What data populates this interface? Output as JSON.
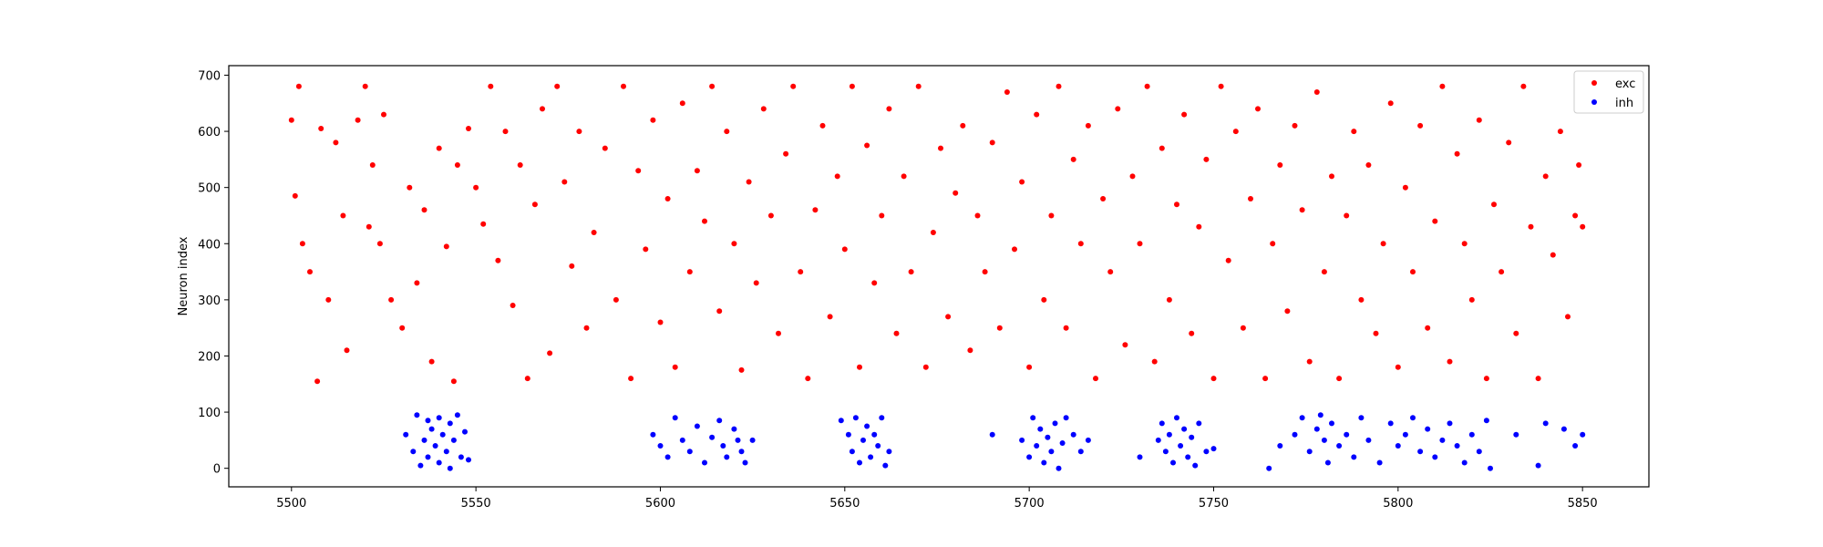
{
  "chart_data": {
    "type": "scatter",
    "title": "",
    "xlabel": "",
    "ylabel": "Neuron index",
    "xlim": [
      5483,
      5868
    ],
    "ylim": [
      -33,
      717
    ],
    "xticks": [
      "5500",
      "5550",
      "5600",
      "5650",
      "5700",
      "5750",
      "5800",
      "5850"
    ],
    "yticks": [
      "0",
      "100",
      "200",
      "300",
      "400",
      "500",
      "600",
      "700"
    ],
    "grid": false,
    "legend_position": "top-right",
    "series": [
      {
        "name": "exc",
        "color": "#ff0000",
        "points": [
          [
            5500,
            620
          ],
          [
            5501,
            485
          ],
          [
            5502,
            680
          ],
          [
            5503,
            400
          ],
          [
            5505,
            350
          ],
          [
            5507,
            155
          ],
          [
            5508,
            605
          ],
          [
            5510,
            300
          ],
          [
            5512,
            580
          ],
          [
            5514,
            450
          ],
          [
            5515,
            210
          ],
          [
            5518,
            620
          ],
          [
            5520,
            680
          ],
          [
            5521,
            430
          ],
          [
            5522,
            540
          ],
          [
            5524,
            400
          ],
          [
            5525,
            630
          ],
          [
            5527,
            300
          ],
          [
            5530,
            250
          ],
          [
            5532,
            500
          ],
          [
            5534,
            330
          ],
          [
            5536,
            460
          ],
          [
            5538,
            190
          ],
          [
            5540,
            570
          ],
          [
            5542,
            395
          ],
          [
            5544,
            155
          ],
          [
            5545,
            540
          ],
          [
            5548,
            605
          ],
          [
            5550,
            500
          ],
          [
            5552,
            435
          ],
          [
            5554,
            680
          ],
          [
            5556,
            370
          ],
          [
            5558,
            600
          ],
          [
            5560,
            290
          ],
          [
            5562,
            540
          ],
          [
            5564,
            160
          ],
          [
            5566,
            470
          ],
          [
            5568,
            640
          ],
          [
            5570,
            205
          ],
          [
            5572,
            680
          ],
          [
            5574,
            510
          ],
          [
            5576,
            360
          ],
          [
            5578,
            600
          ],
          [
            5580,
            250
          ],
          [
            5582,
            420
          ],
          [
            5585,
            570
          ],
          [
            5588,
            300
          ],
          [
            5590,
            680
          ],
          [
            5592,
            160
          ],
          [
            5594,
            530
          ],
          [
            5596,
            390
          ],
          [
            5598,
            620
          ],
          [
            5600,
            260
          ],
          [
            5602,
            480
          ],
          [
            5604,
            180
          ],
          [
            5606,
            650
          ],
          [
            5608,
            350
          ],
          [
            5610,
            530
          ],
          [
            5612,
            440
          ],
          [
            5614,
            680
          ],
          [
            5616,
            280
          ],
          [
            5618,
            600
          ],
          [
            5620,
            400
          ],
          [
            5622,
            175
          ],
          [
            5624,
            510
          ],
          [
            5626,
            330
          ],
          [
            5628,
            640
          ],
          [
            5630,
            450
          ],
          [
            5632,
            240
          ],
          [
            5634,
            560
          ],
          [
            5636,
            680
          ],
          [
            5638,
            350
          ],
          [
            5640,
            160
          ],
          [
            5642,
            460
          ],
          [
            5644,
            610
          ],
          [
            5646,
            270
          ],
          [
            5648,
            520
          ],
          [
            5650,
            390
          ],
          [
            5652,
            680
          ],
          [
            5654,
            180
          ],
          [
            5656,
            575
          ],
          [
            5658,
            330
          ],
          [
            5660,
            450
          ],
          [
            5662,
            640
          ],
          [
            5664,
            240
          ],
          [
            5666,
            520
          ],
          [
            5668,
            350
          ],
          [
            5670,
            680
          ],
          [
            5672,
            180
          ],
          [
            5674,
            420
          ],
          [
            5676,
            570
          ],
          [
            5678,
            270
          ],
          [
            5680,
            490
          ],
          [
            5682,
            610
          ],
          [
            5684,
            210
          ],
          [
            5686,
            450
          ],
          [
            5688,
            350
          ],
          [
            5690,
            580
          ],
          [
            5692,
            250
          ],
          [
            5694,
            670
          ],
          [
            5696,
            390
          ],
          [
            5698,
            510
          ],
          [
            5700,
            180
          ],
          [
            5702,
            630
          ],
          [
            5704,
            300
          ],
          [
            5706,
            450
          ],
          [
            5708,
            680
          ],
          [
            5710,
            250
          ],
          [
            5712,
            550
          ],
          [
            5714,
            400
          ],
          [
            5716,
            610
          ],
          [
            5718,
            160
          ],
          [
            5720,
            480
          ],
          [
            5722,
            350
          ],
          [
            5724,
            640
          ],
          [
            5726,
            220
          ],
          [
            5728,
            520
          ],
          [
            5730,
            400
          ],
          [
            5732,
            680
          ],
          [
            5734,
            190
          ],
          [
            5736,
            570
          ],
          [
            5738,
            300
          ],
          [
            5740,
            470
          ],
          [
            5742,
            630
          ],
          [
            5744,
            240
          ],
          [
            5746,
            430
          ],
          [
            5748,
            550
          ],
          [
            5750,
            160
          ],
          [
            5752,
            680
          ],
          [
            5754,
            370
          ],
          [
            5756,
            600
          ],
          [
            5758,
            250
          ],
          [
            5760,
            480
          ],
          [
            5762,
            640
          ],
          [
            5764,
            160
          ],
          [
            5766,
            400
          ],
          [
            5768,
            540
          ],
          [
            5770,
            280
          ],
          [
            5772,
            610
          ],
          [
            5774,
            460
          ],
          [
            5776,
            190
          ],
          [
            5778,
            670
          ],
          [
            5780,
            350
          ],
          [
            5782,
            520
          ],
          [
            5784,
            160
          ],
          [
            5786,
            450
          ],
          [
            5788,
            600
          ],
          [
            5790,
            300
          ],
          [
            5792,
            540
          ],
          [
            5794,
            240
          ],
          [
            5796,
            400
          ],
          [
            5798,
            650
          ],
          [
            5800,
            180
          ],
          [
            5802,
            500
          ],
          [
            5804,
            350
          ],
          [
            5806,
            610
          ],
          [
            5808,
            250
          ],
          [
            5810,
            440
          ],
          [
            5812,
            680
          ],
          [
            5814,
            190
          ],
          [
            5816,
            560
          ],
          [
            5818,
            400
          ],
          [
            5820,
            300
          ],
          [
            5822,
            620
          ],
          [
            5824,
            160
          ],
          [
            5826,
            470
          ],
          [
            5828,
            350
          ],
          [
            5830,
            580
          ],
          [
            5832,
            240
          ],
          [
            5834,
            680
          ],
          [
            5836,
            430
          ],
          [
            5838,
            160
          ],
          [
            5840,
            520
          ],
          [
            5842,
            380
          ],
          [
            5844,
            600
          ],
          [
            5846,
            270
          ],
          [
            5848,
            450
          ],
          [
            5849,
            540
          ],
          [
            5850,
            430
          ]
        ]
      },
      {
        "name": "inh",
        "color": "#0000ff",
        "points": [
          [
            5531,
            60
          ],
          [
            5533,
            30
          ],
          [
            5534,
            95
          ],
          [
            5535,
            5
          ],
          [
            5536,
            50
          ],
          [
            5537,
            85
          ],
          [
            5537,
            20
          ],
          [
            5538,
            70
          ],
          [
            5539,
            40
          ],
          [
            5540,
            90
          ],
          [
            5540,
            10
          ],
          [
            5541,
            60
          ],
          [
            5542,
            30
          ],
          [
            5543,
            80
          ],
          [
            5543,
            0
          ],
          [
            5544,
            50
          ],
          [
            5545,
            95
          ],
          [
            5546,
            20
          ],
          [
            5547,
            65
          ],
          [
            5548,
            15
          ],
          [
            5598,
            60
          ],
          [
            5600,
            40
          ],
          [
            5602,
            20
          ],
          [
            5604,
            90
          ],
          [
            5606,
            50
          ],
          [
            5608,
            30
          ],
          [
            5610,
            75
          ],
          [
            5612,
            10
          ],
          [
            5614,
            55
          ],
          [
            5616,
            85
          ],
          [
            5617,
            40
          ],
          [
            5618,
            20
          ],
          [
            5620,
            70
          ],
          [
            5621,
            50
          ],
          [
            5622,
            30
          ],
          [
            5623,
            10
          ],
          [
            5625,
            50
          ],
          [
            5649,
            85
          ],
          [
            5651,
            60
          ],
          [
            5652,
            30
          ],
          [
            5653,
            90
          ],
          [
            5654,
            10
          ],
          [
            5655,
            50
          ],
          [
            5656,
            75
          ],
          [
            5657,
            20
          ],
          [
            5658,
            60
          ],
          [
            5659,
            40
          ],
          [
            5660,
            90
          ],
          [
            5661,
            5
          ],
          [
            5662,
            30
          ],
          [
            5690,
            60
          ],
          [
            5698,
            50
          ],
          [
            5700,
            20
          ],
          [
            5701,
            90
          ],
          [
            5702,
            40
          ],
          [
            5703,
            70
          ],
          [
            5704,
            10
          ],
          [
            5705,
            55
          ],
          [
            5706,
            30
          ],
          [
            5707,
            80
          ],
          [
            5708,
            0
          ],
          [
            5709,
            45
          ],
          [
            5710,
            90
          ],
          [
            5712,
            60
          ],
          [
            5714,
            30
          ],
          [
            5716,
            50
          ],
          [
            5730,
            20
          ],
          [
            5735,
            50
          ],
          [
            5736,
            80
          ],
          [
            5737,
            30
          ],
          [
            5738,
            60
          ],
          [
            5739,
            10
          ],
          [
            5740,
            90
          ],
          [
            5741,
            40
          ],
          [
            5742,
            70
          ],
          [
            5743,
            20
          ],
          [
            5744,
            55
          ],
          [
            5745,
            5
          ],
          [
            5746,
            80
          ],
          [
            5748,
            30
          ],
          [
            5750,
            35
          ],
          [
            5765,
            0
          ],
          [
            5768,
            40
          ],
          [
            5772,
            60
          ],
          [
            5774,
            90
          ],
          [
            5776,
            30
          ],
          [
            5778,
            70
          ],
          [
            5779,
            95
          ],
          [
            5780,
            50
          ],
          [
            5781,
            10
          ],
          [
            5782,
            80
          ],
          [
            5784,
            40
          ],
          [
            5786,
            60
          ],
          [
            5788,
            20
          ],
          [
            5790,
            90
          ],
          [
            5792,
            50
          ],
          [
            5795,
            10
          ],
          [
            5798,
            80
          ],
          [
            5800,
            40
          ],
          [
            5802,
            60
          ],
          [
            5804,
            90
          ],
          [
            5806,
            30
          ],
          [
            5808,
            70
          ],
          [
            5810,
            20
          ],
          [
            5812,
            50
          ],
          [
            5814,
            80
          ],
          [
            5816,
            40
          ],
          [
            5818,
            10
          ],
          [
            5820,
            60
          ],
          [
            5822,
            30
          ],
          [
            5824,
            85
          ],
          [
            5825,
            0
          ],
          [
            5832,
            60
          ],
          [
            5838,
            5
          ],
          [
            5840,
            80
          ],
          [
            5845,
            70
          ],
          [
            5848,
            40
          ],
          [
            5850,
            60
          ]
        ]
      }
    ]
  }
}
